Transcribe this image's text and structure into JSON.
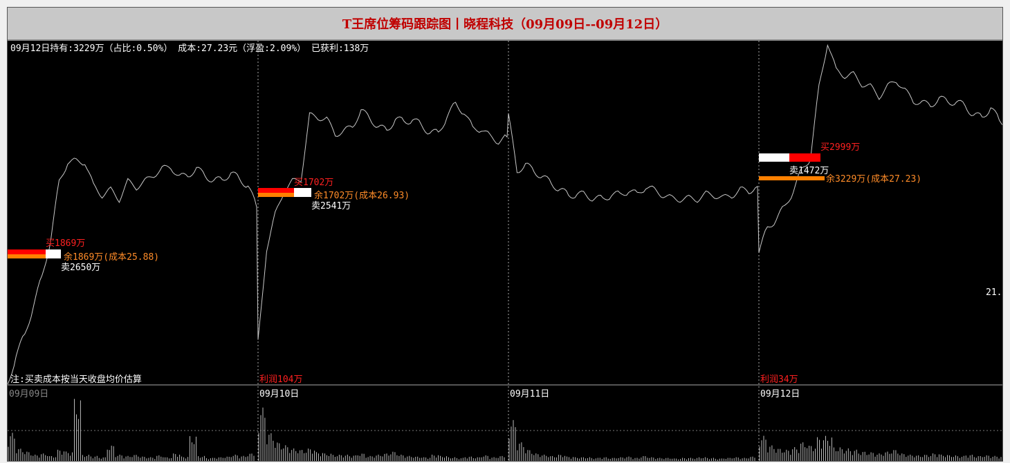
{
  "title": "T王席位筹码跟踪图丨晓程科技（09月09日--09月12日）",
  "summary": "09月12日持有:3229万（占比:0.50%） 成本:27.23元（浮盈:2.09%） 已获利:138万",
  "note": "注:买卖成本按当天收盘均价估算",
  "right_axis_label": "21.",
  "colors": {
    "price_line": "#c8c8c8",
    "buy": "#ff0000",
    "sell": "#ffffff",
    "remain": "#ff8000",
    "text_red": "#ff2020",
    "text_orange": "#ff8c28",
    "text_white": "#ffffff",
    "grid": "#aaaaaa"
  },
  "chart_data": {
    "type": "line",
    "x_labels": [
      "09月09日",
      "09月10日",
      "09月11日",
      "09月12日"
    ],
    "days": [
      {
        "label": "09月09日",
        "buy": "买1869万",
        "sell": "卖2650万",
        "remain": "余1869万(成本25.88)",
        "profit": "",
        "price": [
          20.0,
          20.7,
          21.2,
          21.9,
          22.6,
          23.5,
          24.9,
          25.4,
          25.4,
          25.4,
          24.8,
          24.6,
          24.7,
          24.5,
          24.9,
          24.8,
          24.9,
          25.1,
          25.2,
          25.3,
          25.0,
          25.1,
          25.2,
          25.1,
          24.9,
          25.0,
          25.1,
          25.0,
          24.8,
          24.3
        ]
      },
      {
        "label": "09月10日",
        "buy": "买1702万",
        "sell": "卖2541万",
        "remain": "余1702万(成本26.93)",
        "profit": "利润104万",
        "price": [
          21.0,
          23.3,
          24.1,
          24.7,
          24.9,
          25.0,
          26.5,
          26.5,
          26.4,
          26.1,
          26.1,
          26.3,
          26.6,
          26.5,
          26.2,
          26.2,
          26.4,
          26.4,
          26.4,
          26.3,
          26.1,
          26.1,
          26.5,
          26.8,
          26.6,
          26.2,
          26.2,
          26.0,
          25.9,
          26.0
        ]
      },
      {
        "label": "09月11日",
        "buy": "",
        "sell": "",
        "remain": "",
        "profit": "",
        "price": [
          26.5,
          25.2,
          25.3,
          25.2,
          25.0,
          24.9,
          24.7,
          24.6,
          24.6,
          24.6,
          24.5,
          24.5,
          24.6,
          24.6,
          24.7,
          24.6,
          24.8,
          24.7,
          24.6,
          24.5,
          24.5,
          24.5,
          24.5,
          24.6,
          24.6,
          24.5,
          24.6,
          24.7,
          24.7,
          24.8
        ]
      },
      {
        "label": "09月12日",
        "buy": "买2999万",
        "sell": "卖1472万",
        "remain": "余3229万(成本27.23)",
        "profit": "利润34万",
        "price": [
          23.2,
          23.8,
          24.0,
          24.3,
          24.7,
          25.2,
          25.5,
          27.2,
          28.3,
          27.6,
          27.5,
          27.5,
          27.3,
          27.2,
          27.0,
          27.2,
          27.4,
          27.1,
          26.9,
          26.8,
          26.8,
          26.9,
          26.9,
          26.8,
          26.8,
          26.5,
          26.5,
          26.7,
          26.4,
          26.3
        ]
      }
    ],
    "volume": [
      [
        0.45,
        0.2,
        0.15,
        0.1,
        0.12,
        0.08,
        0.18,
        0.15,
        1.0,
        0.1,
        0.08,
        0.06,
        0.25,
        0.1,
        0.08,
        0.1,
        0.07,
        0.06,
        0.09,
        0.06,
        0.12,
        0.07,
        0.4,
        0.08,
        0.05,
        0.06,
        0.07,
        0.1,
        0.08,
        0.12
      ],
      [
        0.85,
        0.45,
        0.3,
        0.25,
        0.2,
        0.18,
        0.2,
        0.14,
        0.12,
        0.1,
        0.1,
        0.09,
        0.12,
        0.08,
        0.1,
        0.12,
        0.15,
        0.1,
        0.08,
        0.07,
        0.06,
        0.1,
        0.08,
        0.06,
        0.05,
        0.07,
        0.06,
        0.09,
        0.06,
        0.08
      ],
      [
        0.65,
        0.3,
        0.18,
        0.12,
        0.1,
        0.08,
        0.1,
        0.07,
        0.06,
        0.06,
        0.05,
        0.06,
        0.05,
        0.06,
        0.07,
        0.05,
        0.08,
        0.06,
        0.05,
        0.05,
        0.04,
        0.05,
        0.05,
        0.06,
        0.05,
        0.04,
        0.05,
        0.06,
        0.05,
        0.07
      ],
      [
        0.4,
        0.25,
        0.2,
        0.18,
        0.22,
        0.3,
        0.25,
        0.38,
        0.4,
        0.22,
        0.2,
        0.18,
        0.15,
        0.14,
        0.12,
        0.15,
        0.18,
        0.12,
        0.1,
        0.09,
        0.1,
        0.12,
        0.1,
        0.09,
        0.08,
        0.1,
        0.08,
        0.09,
        0.08,
        0.07
      ]
    ],
    "ylim": [
      20.0,
      28.3
    ]
  }
}
